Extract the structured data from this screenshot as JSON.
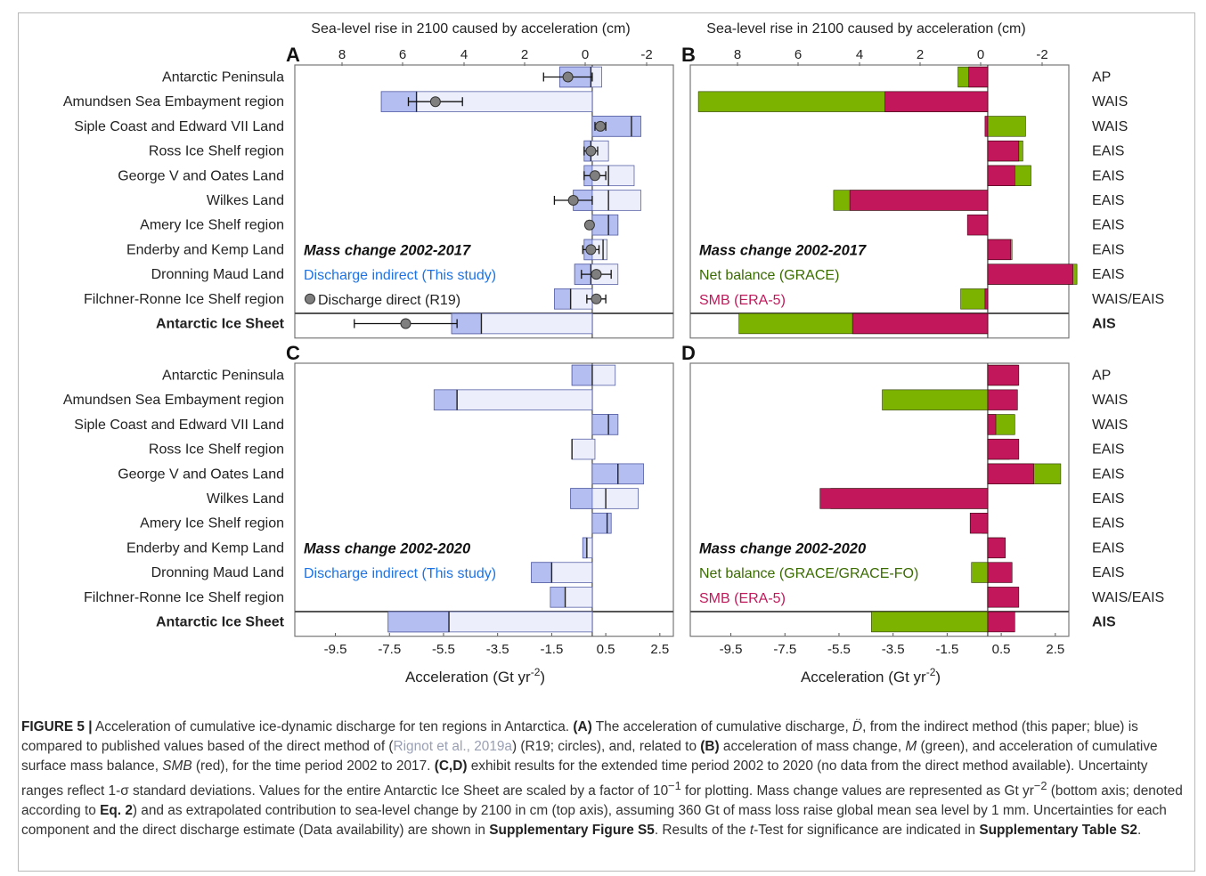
{
  "top_axis_label": "Sea-level rise in 2100 caused by acceleration (cm)",
  "bottom_axis_label": "Acceleration (Gt yr",
  "bottom_axis_sup": "-2",
  "bottom_axis_close": ")",
  "top_ticks": [
    "8",
    "6",
    "4",
    "2",
    "0",
    "-2"
  ],
  "bottom_ticks": [
    "-9.5",
    "-7.5",
    "-5.5",
    "-3.5",
    "-1.5",
    "0.5",
    "2.5"
  ],
  "regions": [
    "Antarctic Peninsula",
    "Amundsen Sea Embayment region",
    "Siple Coast and Edward VII Land",
    "Ross Ice Shelf region",
    "George V and Oates Land",
    "Wilkes Land",
    "Amery Ice Shelf region",
    "Enderby and Kemp Land",
    "Dronning Maud Land",
    "Filchner-Ronne Ice Shelf region",
    "Antarctic Ice Sheet"
  ],
  "right_labels": [
    "AP",
    "WAIS",
    "WAIS",
    "EAIS",
    "EAIS",
    "EAIS",
    "EAIS",
    "EAIS",
    "EAIS",
    "WAIS/EAIS",
    "AIS"
  ],
  "colors": {
    "discharge_fill": "#b4bef0",
    "discharge_light": "#eceefb",
    "discharge_edge": "#5a64a8",
    "net_balance": "#7cb300",
    "smb": "#c2185b",
    "circle": "#7f7f7f",
    "blue_text": "#1a73e8",
    "green_text": "#3a6b00",
    "red_text": "#c2185b"
  },
  "panels": {
    "A": {
      "letter": "A",
      "title": "Mass change 2002-2017",
      "legend1": "Discharge indirect (This study)",
      "legend2": "Discharge direct (R19)"
    },
    "B": {
      "letter": "B",
      "title": "Mass change 2002-2017",
      "legend1": "Net balance (GRACE)",
      "legend2": "SMB (ERA-5)"
    },
    "C": {
      "letter": "C",
      "title": "Mass change 2002-2020",
      "legend1": "Discharge indirect (This study)"
    },
    "D": {
      "letter": "D",
      "title": "Mass change 2002-2020",
      "legend1": "Net balance (GRACE/GRACE-FO)",
      "legend2": "SMB (ERA-5)"
    }
  },
  "chart_data": [
    {
      "panel": "A",
      "type": "bar",
      "xlabel": "Acceleration (Gt yr-2)",
      "x2label": "Sea-level rise in 2100 caused by acceleration (cm)",
      "xlim": [
        -11,
        3
      ],
      "categories": [
        "Antarctic Peninsula",
        "Amundsen Sea Embayment region",
        "Siple Coast and Edward VII Land",
        "Ross Ice Shelf region",
        "George V and Oates Land",
        "Wilkes Land",
        "Amery Ice Shelf region",
        "Enderby and Kemp Land",
        "Dronning Maud Land",
        "Filchner-Ronne Ice Shelf region",
        "Antarctic Ice Sheet"
      ],
      "discharge_indirect": [
        {
          "value": -0.05,
          "low": -1.2,
          "high": 0.35
        },
        {
          "value": -6.5,
          "low": -7.8,
          "high": 0.0
        },
        {
          "value": 1.45,
          "low": 0.0,
          "high": 1.8
        },
        {
          "value": -0.05,
          "low": -0.3,
          "high": 0.6
        },
        {
          "value": 0.6,
          "low": -0.3,
          "high": 1.55
        },
        {
          "value": 0.6,
          "low": -0.7,
          "high": 1.8
        },
        {
          "value": 0.6,
          "low": 0.0,
          "high": 0.95
        },
        {
          "value": 0.4,
          "low": -0.3,
          "high": 0.55
        },
        {
          "value": -0.05,
          "low": -0.65,
          "high": 0.95
        },
        {
          "value": -0.8,
          "low": -1.4,
          "high": 0.0
        },
        {
          "value": -4.1,
          "low": -5.2,
          "high": 0.0
        }
      ],
      "discharge_direct": [
        {
          "value": -0.9,
          "err": 0.9
        },
        {
          "value": -5.8,
          "err": 1.0
        },
        {
          "value": 0.3,
          "err": 0.2
        },
        {
          "value": -0.05,
          "err": 0.25
        },
        {
          "value": 0.1,
          "err": 0.4
        },
        {
          "value": -0.7,
          "err": 0.7
        },
        {
          "value": -0.1,
          "err": 0.1
        },
        {
          "value": -0.05,
          "err": 0.3
        },
        {
          "value": 0.15,
          "err": 0.55
        },
        {
          "value": 0.15,
          "err": 0.35
        },
        {
          "value": -6.9,
          "err": 1.9
        }
      ]
    },
    {
      "panel": "B",
      "type": "bar",
      "xlabel": "Acceleration (Gt yr-2)",
      "x2label": "Sea-level rise in 2100 caused by acceleration (cm)",
      "xlim": [
        -11,
        3
      ],
      "categories": [
        "AP",
        "WAIS",
        "WAIS",
        "EAIS",
        "EAIS",
        "EAIS",
        "EAIS",
        "EAIS",
        "EAIS",
        "WAIS/EAIS",
        "AIS"
      ],
      "series": [
        {
          "name": "Net balance (GRACE)",
          "values": [
            -1.1,
            -10.7,
            1.4,
            1.3,
            1.6,
            -5.7,
            -0.05,
            0.9,
            3.3,
            -1.0,
            -9.2
          ]
        },
        {
          "name": "SMB (ERA-5)",
          "values": [
            -0.7,
            -3.8,
            -0.1,
            1.15,
            1.0,
            -5.1,
            -0.75,
            0.85,
            3.15,
            -0.1,
            -5.0
          ]
        }
      ]
    },
    {
      "panel": "C",
      "type": "bar",
      "xlabel": "Acceleration (Gt yr-2)",
      "xlim": [
        -11,
        3
      ],
      "categories": [
        "Antarctic Peninsula",
        "Amundsen Sea Embayment region",
        "Siple Coast and Edward VII Land",
        "Ross Ice Shelf region",
        "George V and Oates Land",
        "Wilkes Land",
        "Amery Ice Shelf region",
        "Enderby and Kemp Land",
        "Dronning Maud Land",
        "Filchner-Ronne Ice Shelf region",
        "Antarctic Ice Sheet"
      ],
      "discharge_indirect": [
        {
          "value": 0.0,
          "low": -0.75,
          "high": 0.85
        },
        {
          "value": -5.0,
          "low": -5.85,
          "high": 0.0
        },
        {
          "value": 0.6,
          "low": 0.0,
          "high": 0.95
        },
        {
          "value": -0.75,
          "low": -0.75,
          "high": 0.1
        },
        {
          "value": 0.95,
          "low": 0.0,
          "high": 1.9
        },
        {
          "value": 0.5,
          "low": -0.8,
          "high": 1.7
        },
        {
          "value": 0.55,
          "low": 0.0,
          "high": 0.7
        },
        {
          "value": -0.2,
          "low": -0.35,
          "high": 0.0
        },
        {
          "value": -1.5,
          "low": -2.25,
          "high": 0.0
        },
        {
          "value": -1.0,
          "low": -1.55,
          "high": 0.0
        },
        {
          "value": -5.3,
          "low": -7.55,
          "high": 0.0
        }
      ]
    },
    {
      "panel": "D",
      "type": "bar",
      "xlabel": "Acceleration (Gt yr-2)",
      "xlim": [
        -11,
        3
      ],
      "categories": [
        "AP",
        "WAIS",
        "WAIS",
        "EAIS",
        "EAIS",
        "EAIS",
        "EAIS",
        "EAIS",
        "EAIS",
        "WAIS/EAIS",
        "AIS"
      ],
      "series": [
        {
          "name": "Net balance (GRACE/GRACE-FO)",
          "values": [
            1.1,
            -3.9,
            1.0,
            0.8,
            2.7,
            -5.8,
            -0.2,
            0.55,
            -0.6,
            0.1,
            -4.3
          ]
        },
        {
          "name": "SMB (ERA-5)",
          "values": [
            1.15,
            1.1,
            0.3,
            1.15,
            1.7,
            -6.2,
            -0.65,
            0.65,
            0.9,
            1.15,
            1.0
          ]
        }
      ]
    }
  ],
  "caption": {
    "fig_label": "FIGURE 5 |",
    "s1": " Acceleration of cumulative ice-dynamic discharge for ten regions in Antarctica. ",
    "a_label": "(A)",
    "s2": " The acceleration of cumulative discharge, ",
    "ddot_symbol": "D̈",
    "s3": ", from the indirect method (this paper; blue) is compared to published values based of the direct method of (",
    "ref": "Rignot et al., 2019a",
    "s4": ") (R19; circles), and, related to ",
    "b_label": "(B)",
    "s5": " acceleration of mass change, ",
    "m_symbol": "M",
    "s6": " (green), and acceleration of cumulative surface mass balance, ",
    "smb_symbol": "SMB",
    "s7": " (red), for the time period 2002 to 2017. ",
    "cd_label": "(C,D)",
    "s8": " exhibit results for the extended time period 2002 to 2020 (no data from the direct method available). Uncertainty ranges reflect 1-σ standard deviations. Values for the entire Antarctic Ice Sheet are scaled by a factor of 10",
    "sup1": "−1",
    "s9": " for plotting. Mass change values are represented as Gt yr",
    "sup2": "−2",
    "s10": " (bottom axis; denoted according to ",
    "eq_label": "Eq. 2",
    "s11": ") and as extrapolated contribution to sea-level change by 2100 in cm (top axis), assuming 360 Gt of mass loss raise global mean sea level by 1 mm. Uncertainties for each component and the direct discharge estimate (Data availability) are shown in ",
    "supp_fig": "Supplementary Figure S5",
    "s12": ". Results of the ",
    "t_symbol": "t",
    "s13": "-Test for significance are indicated in ",
    "supp_table": "Supplementary Table S2",
    "s14": "."
  }
}
